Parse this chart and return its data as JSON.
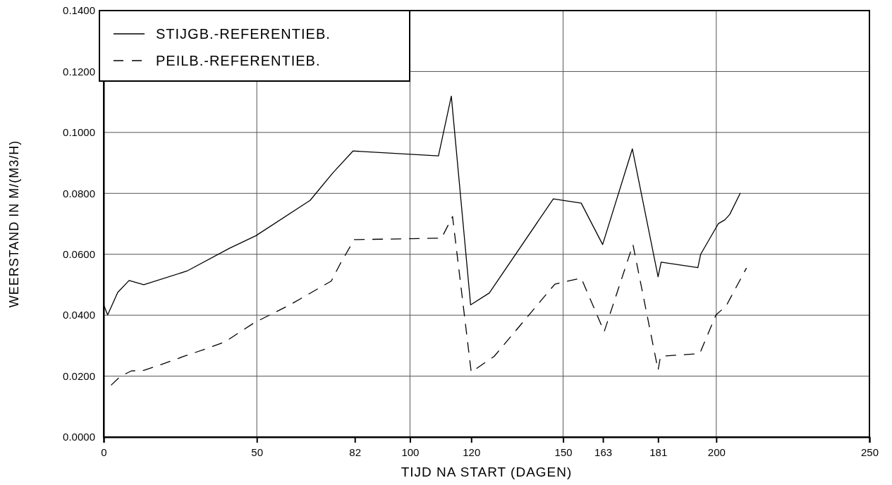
{
  "chart_data": {
    "type": "line",
    "xlabel": "TIJD NA START (DAGEN)",
    "ylabel": "WEERSTAND IN M/(M3/H)",
    "xlim": [
      0,
      250
    ],
    "xticks": [
      0,
      50,
      82,
      100,
      120,
      150,
      163,
      181,
      200,
      250
    ],
    "ylim": [
      0,
      0.14
    ],
    "yticks": [
      {
        "value": 0,
        "label": "0.0000"
      },
      {
        "value": 0.02,
        "label": "0.0200"
      },
      {
        "value": 0.04,
        "label": "0.0400"
      },
      {
        "value": 0.06,
        "label": "0.0600"
      },
      {
        "value": 0.08,
        "label": "0.0800"
      },
      {
        "value": 0.1,
        "label": "0.1000"
      },
      {
        "value": 0.12,
        "label": "0.1200"
      },
      {
        "value": 0.14,
        "label": "0.1400"
      }
    ],
    "grid": "y",
    "legend": "top left",
    "ref_lines": [
      {
        "axis": "x",
        "value": 50,
        "color": "#555555"
      },
      {
        "axis": "x",
        "value": 100,
        "color": "#555555"
      },
      {
        "axis": "x",
        "value": 150,
        "color": "#555555"
      },
      {
        "axis": "x",
        "value": 200,
        "color": "#555555"
      }
    ],
    "series": [
      {
        "name": "STIJGB.-REFERENTIEB.",
        "color": "#000000",
        "line_style": "solid",
        "x": [
          0,
          1.3,
          4.6,
          8.3,
          13.1,
          27.2,
          41.1,
          49.7,
          67.4,
          74.8,
          81.4,
          109.3,
          113.5,
          119.8,
          125.9,
          146.8,
          155.9,
          162.9,
          172.6,
          181,
          182,
          194,
          194.9,
          200.7,
          202.8,
          204.4,
          207.8
        ],
        "values": [
          0.0434,
          0.0401,
          0.0475,
          0.0514,
          0.05,
          0.0545,
          0.062,
          0.0661,
          0.0777,
          0.0867,
          0.0939,
          0.0923,
          0.1119,
          0.0434,
          0.0473,
          0.0782,
          0.0768,
          0.0632,
          0.0946,
          0.0526,
          0.0574,
          0.0556,
          0.06,
          0.0701,
          0.0713,
          0.0731,
          0.08
        ]
      },
      {
        "name": "PEILB.-REFERENTIEB.",
        "color": "#000000",
        "line_style": "dashed",
        "x": [
          2.5,
          5.3,
          9,
          13.1,
          18.2,
          26.2,
          32.9,
          39.5,
          49.3,
          60.8,
          74.3,
          77.3,
          81.8,
          110.3,
          113.9,
          120,
          127.5,
          147.3,
          155.9,
          163.4,
          172.8,
          181,
          181.8,
          194.6,
          199.9,
          203.2,
          209.8
        ],
        "values": [
          0.0171,
          0.0198,
          0.0217,
          0.0219,
          0.0236,
          0.0265,
          0.0288,
          0.0312,
          0.0376,
          0.0434,
          0.0512,
          0.057,
          0.0648,
          0.0653,
          0.0724,
          0.0213,
          0.0265,
          0.0502,
          0.0522,
          0.0346,
          0.0632,
          0.022,
          0.0265,
          0.0274,
          0.0401,
          0.043,
          0.0554
        ]
      }
    ]
  }
}
